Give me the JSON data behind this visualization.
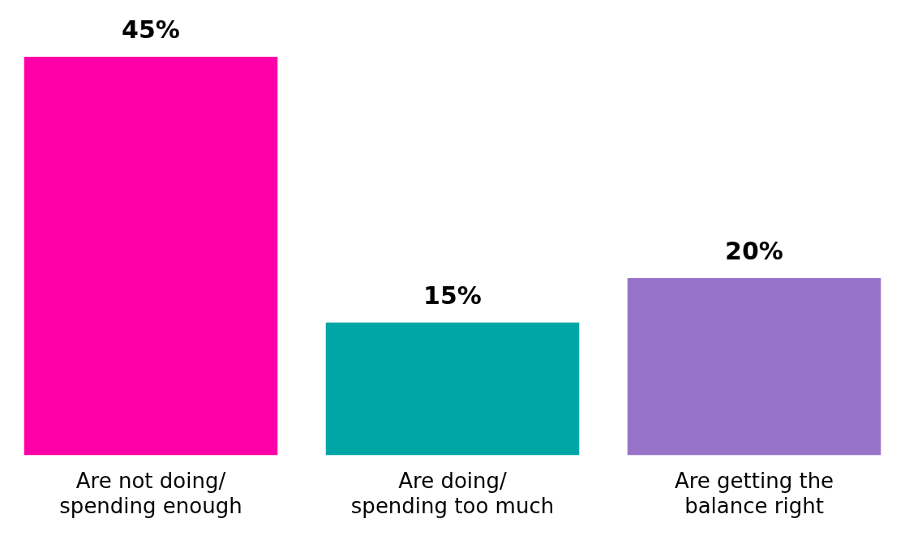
{
  "chart_data": {
    "type": "bar",
    "categories": [
      "Are not doing/ spending enough",
      "Are doing/ spending too much",
      "Are getting the balance right"
    ],
    "values": [
      45,
      15,
      20
    ],
    "colors": [
      "#ff00a8",
      "#00a6a6",
      "#9673c8"
    ],
    "value_labels": [
      "45%",
      "15%",
      "20%"
    ],
    "ylim": [
      0,
      45
    ],
    "tick_labels": "x",
    "grid": false,
    "legend": false
  }
}
